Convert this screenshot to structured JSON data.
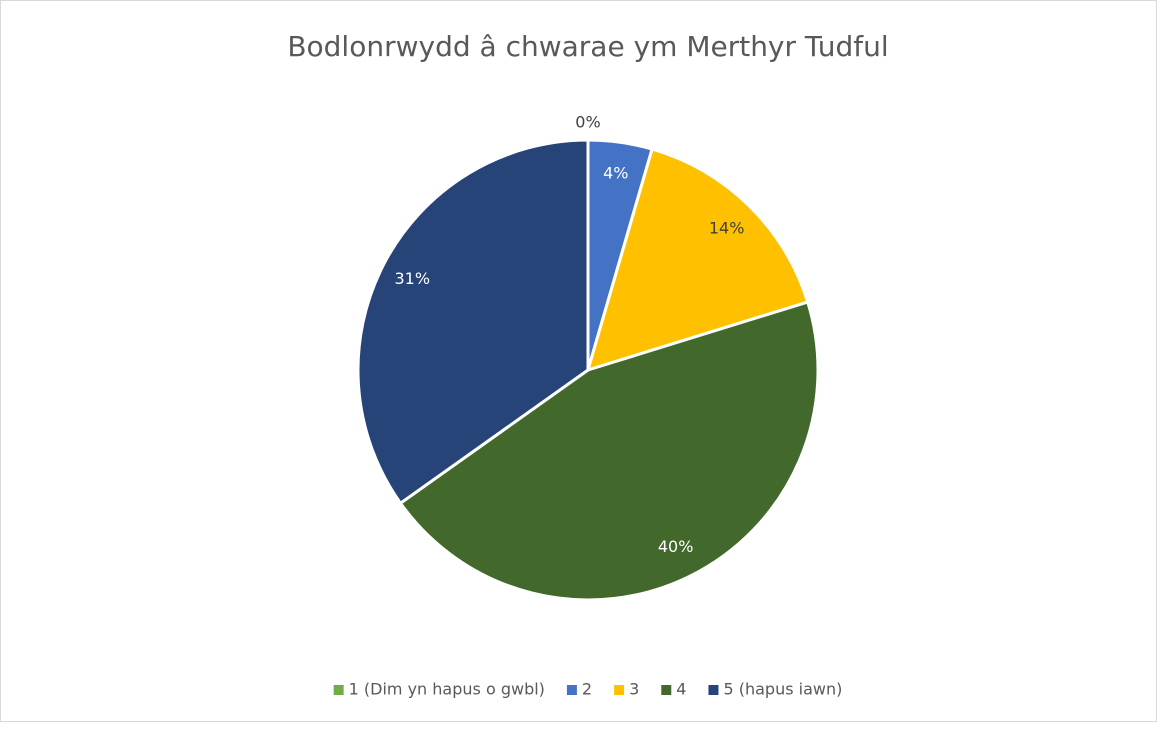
{
  "chart_data": {
    "type": "pie",
    "title": "Bodlonrwydd â chwarae ym Merthyr Tudful",
    "categories": [
      "1 (Dim yn hapus o gwbl)",
      "2",
      "3",
      "4",
      "5 (hapus iawn)"
    ],
    "values": [
      0,
      4,
      14,
      40,
      31
    ],
    "value_labels": [
      "0%",
      "4%",
      "14%",
      "40%",
      "31%"
    ],
    "colors": [
      "#70ad47",
      "#4472c4",
      "#ffc000",
      "#43682b",
      "#264478"
    ],
    "legend": "bottom"
  }
}
